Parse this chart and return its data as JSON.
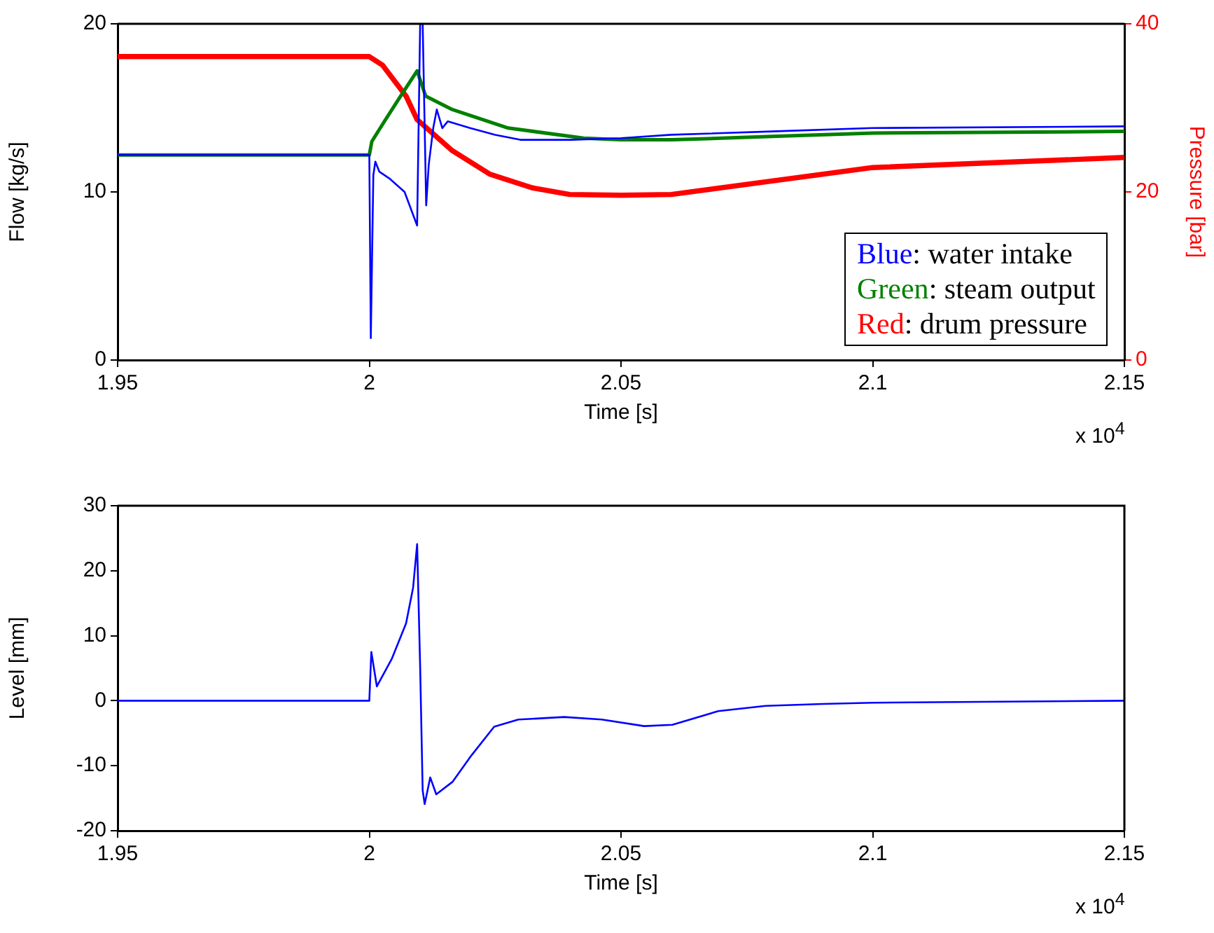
{
  "chart_data": [
    {
      "type": "line",
      "xlabel": "Time [s]",
      "ylabel": "Flow [kg/s]",
      "y2label": "Pressure [bar]",
      "annotations": [
        "x 10$^{4}$"
      ],
      "xlim": [
        1.95,
        2.15
      ],
      "xticks": [
        1.95,
        2,
        2.05,
        2.1,
        2.15
      ],
      "ylim": [
        0,
        20
      ],
      "yticks": [
        0,
        10,
        20
      ],
      "y2lim": [
        0,
        40
      ],
      "y2ticks": [
        0,
        20,
        40
      ],
      "legend": "bottom right",
      "grid": false,
      "series": [
        {
          "name": "Blue: water intake",
          "color": "#0000ff",
          "x": [
            1.95,
            2.0,
            2.0003,
            2.0008,
            2.0012,
            2.002,
            2.004,
            2.007,
            2.0095,
            2.0101,
            2.0106,
            2.0113,
            2.0118,
            2.0127,
            2.0134,
            2.0145,
            2.0156,
            2.02,
            2.025,
            2.03,
            2.04,
            2.05,
            2.06,
            2.08,
            2.1,
            2.15
          ],
          "values": [
            12.2,
            12.2,
            1.3,
            11.0,
            11.8,
            11.2,
            10.8,
            10.0,
            8.0,
            20,
            20,
            9.2,
            11.6,
            13.8,
            14.9,
            13.8,
            14.2,
            13.8,
            13.4,
            13.1,
            13.1,
            13.2,
            13.4,
            13.6,
            13.8,
            13.9
          ]
        },
        {
          "name": "Green: steam output",
          "color": "#008000",
          "x": [
            1.95,
            2.0,
            2.0005,
            2.003,
            2.006,
            2.0095,
            2.0112,
            2.0165,
            2.0276,
            2.0426,
            2.05,
            2.06,
            2.08,
            2.1,
            2.15
          ],
          "values": [
            12.2,
            12.2,
            13.0,
            14.2,
            15.6,
            17.2,
            15.7,
            14.9,
            13.8,
            13.2,
            13.1,
            13.1,
            13.3,
            13.5,
            13.6
          ]
        },
        {
          "name": "Red: drum pressure",
          "color": "#ff0000",
          "axis": "y2",
          "x": [
            1.95,
            2.0,
            2.0026,
            2.0073,
            2.0095,
            2.0165,
            2.024,
            2.0323,
            2.0398,
            2.05,
            2.06,
            2.08,
            2.1,
            2.15
          ],
          "values": [
            36.1,
            36.1,
            35.1,
            31.4,
            28.6,
            24.9,
            22.1,
            20.5,
            19.7,
            19.6,
            19.7,
            21.3,
            22.9,
            24.1
          ]
        }
      ]
    },
    {
      "type": "line",
      "xlabel": "Time [s]",
      "ylabel": "Level [mm]",
      "annotations": [
        "x 10$^{4}$"
      ],
      "xlim": [
        1.95,
        2.15
      ],
      "xticks": [
        1.95,
        2,
        2.05,
        2.1,
        2.15
      ],
      "ylim": [
        -20,
        30
      ],
      "yticks": [
        -20,
        -10,
        0,
        10,
        20,
        30
      ],
      "grid": false,
      "series": [
        {
          "color": "#0000ff",
          "x": [
            1.95,
            2.0,
            2.0004,
            2.0015,
            2.0045,
            2.0073,
            2.0087,
            2.0095,
            2.0101,
            2.0106,
            2.011,
            2.0121,
            2.0133,
            2.0165,
            2.0203,
            2.0248,
            2.0296,
            2.0387,
            2.0462,
            2.0546,
            2.0602,
            2.0693,
            2.0787,
            2.09,
            2.1,
            2.15
          ],
          "values": [
            0,
            0,
            7.5,
            2.2,
            6.5,
            11.9,
            17.4,
            24.1,
            5.2,
            -13.8,
            -15.9,
            -11.8,
            -14.4,
            -12.5,
            -8.4,
            -4.0,
            -2.9,
            -2.5,
            -2.9,
            -3.9,
            -3.7,
            -1.6,
            -0.8,
            -0.5,
            -0.3,
            0
          ]
        }
      ]
    }
  ]
}
